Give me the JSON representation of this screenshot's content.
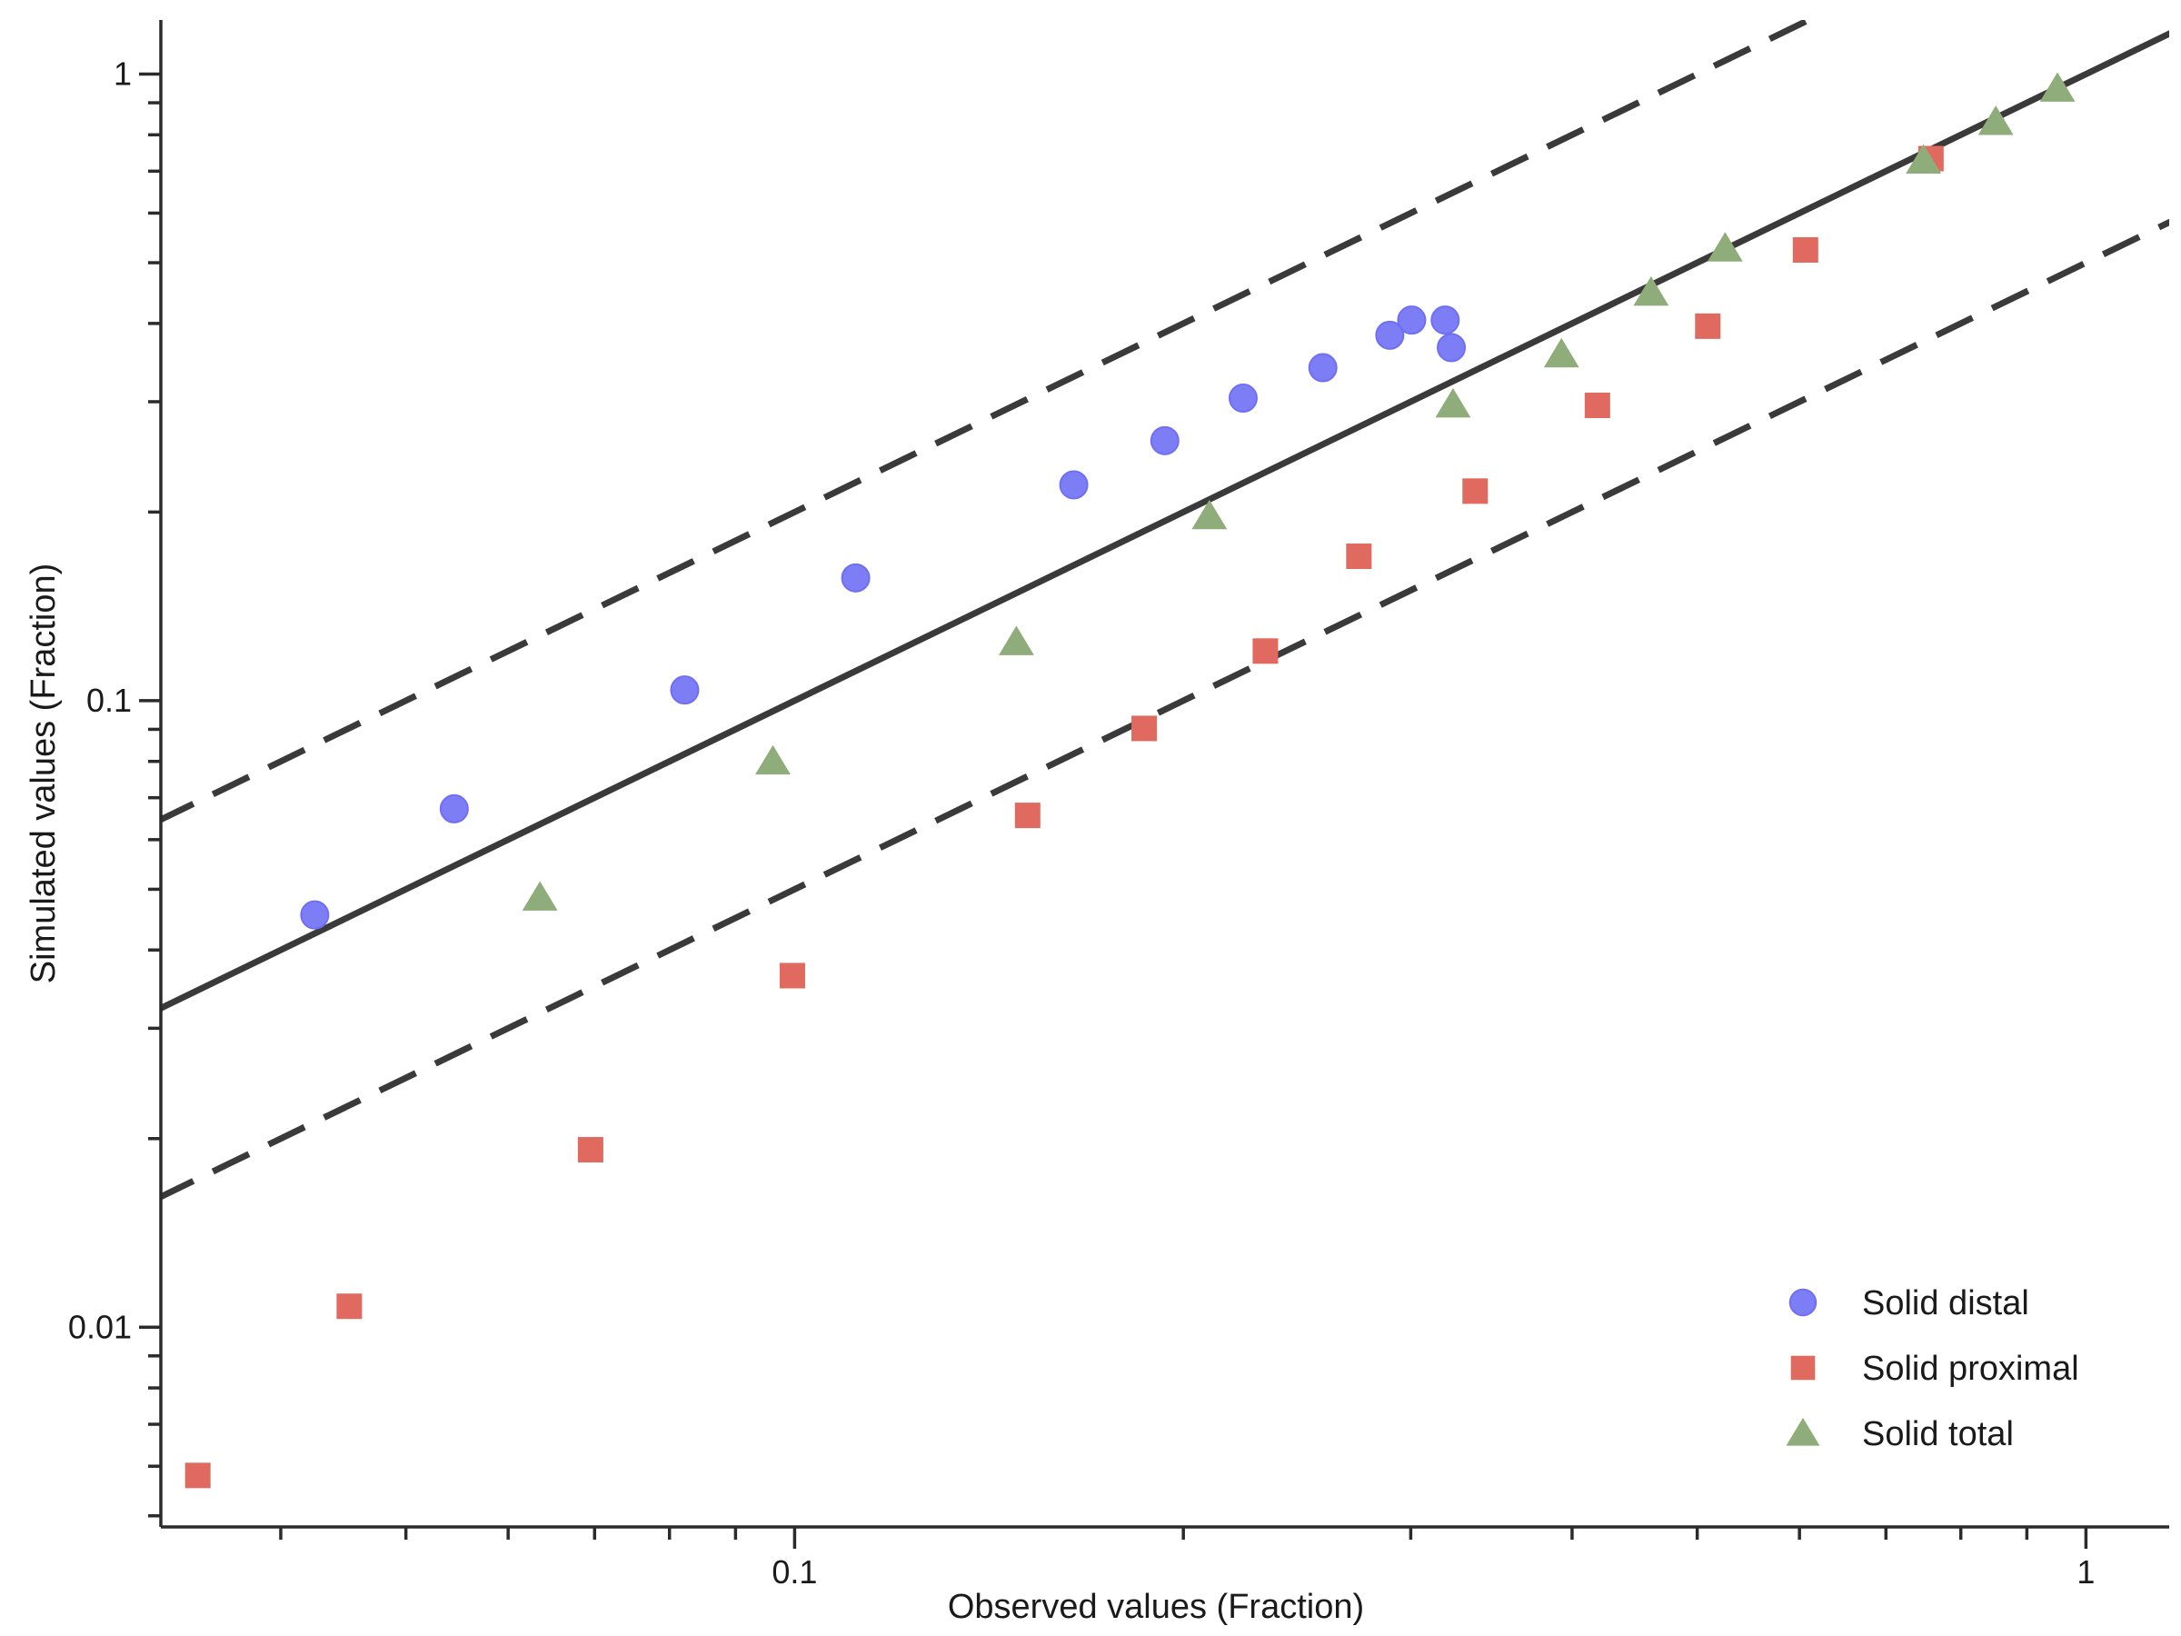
{
  "chart_data": {
    "type": "scatter",
    "title": "",
    "xlabel": "Observed values (Fraction)",
    "ylabel": "Simulated values (Fraction)",
    "xscale": "log",
    "yscale": "log",
    "xlim": [
      0.0323,
      1.16
    ],
    "ylim": [
      0.0048,
      1.22
    ],
    "x_ticks": [
      {
        "value": 0.1,
        "label": "0.1"
      },
      {
        "value": 1,
        "label": "1"
      }
    ],
    "y_ticks": [
      {
        "value": 0.01,
        "label": "0.01"
      },
      {
        "value": 0.1,
        "label": "0.1"
      },
      {
        "value": 1,
        "label": "1"
      }
    ],
    "grid": false,
    "legend_position": "bottom-right",
    "reference_lines": [
      {
        "kind": "solid",
        "slope": 1,
        "factor": 1
      },
      {
        "kind": "dashed",
        "slope": 1,
        "factor": 2
      },
      {
        "kind": "dashed",
        "slope": 1,
        "factor": 0.5
      }
    ],
    "series": [
      {
        "name": "Solid distal",
        "marker": "circle",
        "color": "#6f6ff5",
        "points": [
          {
            "x": 0.0425,
            "y": 0.0455
          },
          {
            "x": 0.0545,
            "y": 0.0672
          },
          {
            "x": 0.0822,
            "y": 0.104
          },
          {
            "x": 0.1115,
            "y": 0.157
          },
          {
            "x": 0.1645,
            "y": 0.221
          },
          {
            "x": 0.1935,
            "y": 0.26
          },
          {
            "x": 0.2225,
            "y": 0.304
          },
          {
            "x": 0.2565,
            "y": 0.34
          },
          {
            "x": 0.289,
            "y": 0.383
          },
          {
            "x": 0.3005,
            "y": 0.405
          },
          {
            "x": 0.319,
            "y": 0.405
          },
          {
            "x": 0.3225,
            "y": 0.366
          }
        ]
      },
      {
        "name": "Solid proximal",
        "marker": "square",
        "color": "#e06a5f",
        "points": [
          {
            "x": 0.0345,
            "y": 0.0058
          },
          {
            "x": 0.0452,
            "y": 0.0108
          },
          {
            "x": 0.0695,
            "y": 0.0192
          },
          {
            "x": 0.0996,
            "y": 0.0364
          },
          {
            "x": 0.1515,
            "y": 0.0656
          },
          {
            "x": 0.1865,
            "y": 0.0903
          },
          {
            "x": 0.2315,
            "y": 0.12
          },
          {
            "x": 0.2735,
            "y": 0.17
          },
          {
            "x": 0.3365,
            "y": 0.216
          },
          {
            "x": 0.4185,
            "y": 0.296
          },
          {
            "x": 0.5095,
            "y": 0.396
          },
          {
            "x": 0.6065,
            "y": 0.524
          },
          {
            "x": 0.7585,
            "y": 0.733
          }
        ]
      },
      {
        "name": "Solid total",
        "marker": "triangle",
        "color": "#8fad7a",
        "points": [
          {
            "x": 0.0635,
            "y": 0.0485
          },
          {
            "x": 0.0962,
            "y": 0.08
          },
          {
            "x": 0.1485,
            "y": 0.124
          },
          {
            "x": 0.2095,
            "y": 0.197
          },
          {
            "x": 0.3235,
            "y": 0.297
          },
          {
            "x": 0.3925,
            "y": 0.357
          },
          {
            "x": 0.4605,
            "y": 0.448
          },
          {
            "x": 0.5255,
            "y": 0.527
          },
          {
            "x": 0.7485,
            "y": 0.728
          },
          {
            "x": 0.8515,
            "y": 0.839
          },
          {
            "x": 0.9505,
            "y": 0.948
          }
        ]
      }
    ]
  }
}
